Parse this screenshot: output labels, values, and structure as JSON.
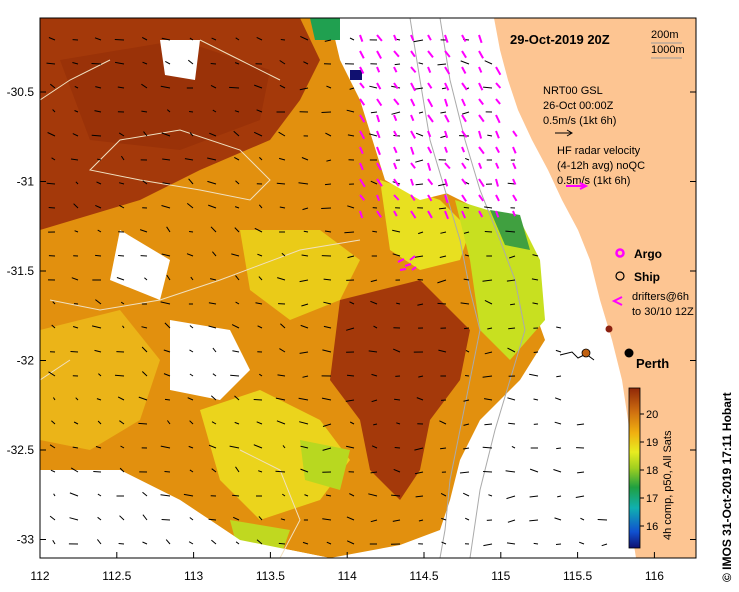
{
  "map": {
    "date_title": "29-Oct-2019 20Z",
    "depth_legend": [
      "200m",
      "1000m"
    ],
    "gsl_lines": [
      "NRT00 GSL",
      "26-Oct 00:00Z",
      "0.5m/s (1kt 6h)"
    ],
    "hf_lines": [
      "HF radar velocity",
      "(4-12h avg) noQC",
      "0.5m/s (1kt 6h)"
    ],
    "legend": {
      "argo": "Argo",
      "ship": "Ship",
      "drifters": [
        "drifters@6h",
        "to 30/10 12Z"
      ]
    },
    "city": "Perth",
    "x_ticks": [
      "112",
      "112.5",
      "113",
      "113.5",
      "114",
      "114.5",
      "115",
      "115.5",
      "116"
    ],
    "y_ticks": [
      "-30.5",
      "-31",
      "-31.5",
      "-32",
      "-32.5",
      "-33"
    ],
    "colorbar": {
      "ticks": [
        "20",
        "19",
        "18",
        "17",
        "16"
      ],
      "label": "4h comp, p50, All Sats"
    },
    "credit": "© IMOS 31-Oct-2019 17:11 Hobart"
  },
  "colors": {
    "land": "#FDC592",
    "hf_arrows": "#FF00FF",
    "sst_warm": "#A0380A",
    "sst_mid": "#E08A10",
    "sst_cool": "#D8EC1E"
  }
}
